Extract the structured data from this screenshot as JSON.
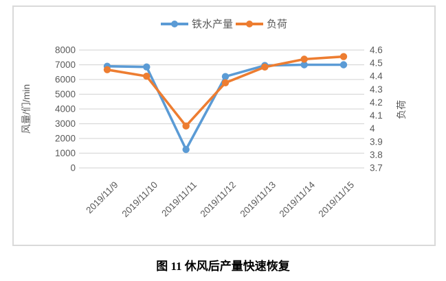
{
  "figure": {
    "caption": "图 11  休风后产量快速恢复"
  },
  "chart_data": {
    "type": "line",
    "title": "",
    "categories": [
      "2019/11/9",
      "2019/11/10",
      "2019/11/11",
      "2019/11/12",
      "2019/11/13",
      "2019/11/14",
      "2019/11/15"
    ],
    "series": [
      {
        "name": "铁水产量",
        "axis": "left",
        "color": "#5b9bd5",
        "values": [
          6900,
          6850,
          1250,
          6200,
          6950,
          7000,
          7000
        ]
      },
      {
        "name": "负荷",
        "axis": "right",
        "color": "#ed7d31",
        "values": [
          4.45,
          4.4,
          4.02,
          4.35,
          4.47,
          4.53,
          4.55
        ]
      }
    ],
    "left_axis": {
      "title": "风量/们/min",
      "min": 0,
      "max": 8000,
      "step": 1000,
      "tick_labels": [
        "8000",
        "7000",
        "6000",
        "5000",
        "4000",
        "3000",
        "2000",
        "1000",
        "0"
      ]
    },
    "right_axis": {
      "title": "负荷",
      "min": 3.7,
      "max": 4.6,
      "step": 0.1,
      "tick_labels": [
        "4.6",
        "4.5",
        "4.4",
        "4.3",
        "4.2",
        "4.1",
        "4",
        "3.9",
        "3.8",
        "3.7"
      ]
    },
    "legend_position": "top",
    "grid": true,
    "colors": {
      "gridline": "#d9d9d9",
      "axis_text": "#595959",
      "border": "#d9d9d9"
    }
  }
}
